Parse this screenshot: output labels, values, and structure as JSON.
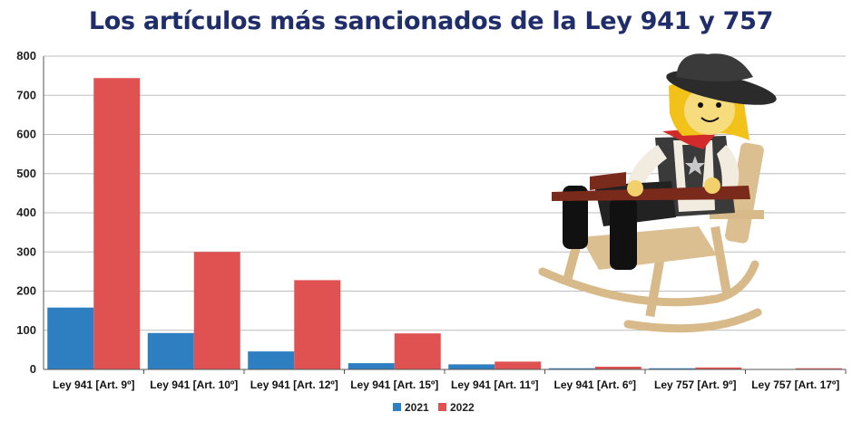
{
  "chart_data": {
    "type": "bar",
    "title": "Los artículos más sancionados de la Ley 941 y 757",
    "categories": [
      "Ley 941 [Art. 9º]",
      "Ley 941 [Art. 10º]",
      "Ley 941 [Art. 12º]",
      "Ley 941 [Art. 15º]",
      "Ley 941 [Art. 11º]",
      "Ley 941 [Art. 6º]",
      "Ley 757 [Art. 9º]",
      "Ley 757 [Art. 17º]"
    ],
    "series": [
      {
        "name": "2021",
        "color": "#2e7fc1",
        "values": [
          158,
          93,
          46,
          16,
          13,
          3,
          3,
          1
        ]
      },
      {
        "name": "2022",
        "color": "#e05252",
        "values": [
          744,
          300,
          228,
          92,
          20,
          7,
          5,
          3
        ]
      }
    ],
    "ylim": [
      0,
      800
    ],
    "yticks": [
      0,
      100,
      200,
      300,
      400,
      500,
      600,
      700,
      800
    ],
    "grid": true,
    "legend": "bottom-center"
  },
  "decoration": {
    "icon": "playmobil-cowboy-rocking-chair-icon"
  }
}
